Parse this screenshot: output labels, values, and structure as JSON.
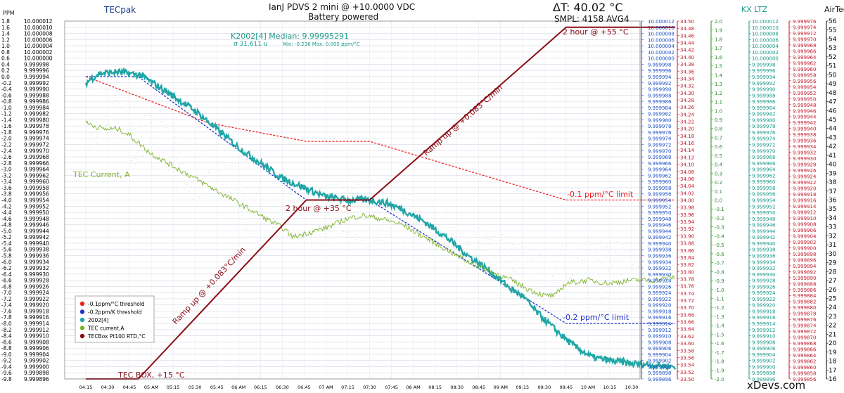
{
  "header": {
    "ppm_unit": "PPM",
    "tecpak": "TECpak",
    "title_line1": "IanJ PDVS 2 mini @ +10.0000 VDC",
    "title_line2": "Battery powered",
    "delta_t": "ΔT: 40.02 °C",
    "smpl": "SMPL: 4158 AVG4",
    "kx_ltz": "KX LTZ",
    "airtec": "AirTec",
    "median": "K2002[4] Median: 9.99995291",
    "sigma": "σ 31.611 u",
    "minmax": "Min: -0.236  Max: 0.005 ppm/°C",
    "watermark": "xDevs.com"
  },
  "chart_data": {
    "type": "line",
    "x_ticks": [
      "04:15",
      "04:30",
      "04:45",
      "05 AM",
      "05:15",
      "05:30",
      "05:45",
      "06 AM",
      "06:15",
      "06:30",
      "06:45",
      "07 AM",
      "07:15",
      "07:30",
      "07:45",
      "08 AM",
      "08:15",
      "08:30",
      "08:45",
      "09 AM",
      "09:15",
      "09:30",
      "09:45",
      "10 AM",
      "10:15",
      "10:30"
    ],
    "axes": {
      "ppm": {
        "min": -9.8,
        "max": 1.8,
        "step": 0.2,
        "color": "#000000"
      },
      "left_volts": {
        "min": 9.999896,
        "max": 10.000012,
        "step": 2e-06,
        "decimals": 6,
        "color": "#000000"
      },
      "k2002": {
        "min": 9.999896,
        "max": 10.000012,
        "step": 2e-06,
        "decimals": 6,
        "color": "#1c4fc4"
      },
      "temp": {
        "min": 33.5,
        "max": 34.5,
        "step": 0.02,
        "decimals": 2,
        "color": "#c0182a"
      },
      "tec_current": {
        "min": -2.0,
        "max": 2.0,
        "step": 0.1,
        "decimals": 1,
        "color": "#2a8a2a"
      },
      "kx_ltz": {
        "min": 9.999896,
        "max": 10.000012,
        "step": 2e-06,
        "decimals": 6,
        "color": "#1a9a8a"
      },
      "airtec_v": {
        "min": 9.999856,
        "max": 9.999976,
        "step": 2e-06,
        "decimals": 6,
        "color": "#c0182a"
      },
      "airtec_t": {
        "min": 16,
        "max": 56,
        "step": 1,
        "decimals": 0,
        "color": "#000000"
      }
    },
    "series": [
      {
        "name": "-0.1ppm/°C threshold",
        "color": "#ee2222",
        "style": "dashed",
        "points": [
          [
            0,
            0.0
          ],
          [
            5.6,
            -1.5
          ],
          [
            10.1,
            -2.1
          ],
          [
            13.0,
            -2.1
          ],
          [
            22.0,
            -4.0
          ],
          [
            27.0,
            -4.0
          ]
        ]
      },
      {
        "name": "-0.2ppm/K threshold",
        "color": "#2233cc",
        "style": "dashed",
        "points": [
          [
            0,
            0.0
          ],
          [
            2.4,
            0.0
          ],
          [
            10.1,
            -4.0
          ],
          [
            13.0,
            -4.0
          ],
          [
            22.0,
            -8.0
          ],
          [
            27.0,
            -8.0
          ]
        ]
      },
      {
        "name": "2002[4]",
        "color": "#20a6a6",
        "style": "noisy",
        "points": [
          [
            0,
            -0.2
          ],
          [
            0.6,
            0.1
          ],
          [
            1.5,
            0.15
          ],
          [
            2.5,
            0.05
          ],
          [
            3.5,
            -0.4
          ],
          [
            5.0,
            -1.1
          ],
          [
            6.0,
            -1.7
          ],
          [
            7.0,
            -2.3
          ],
          [
            8.0,
            -2.8
          ],
          [
            9.0,
            -3.3
          ],
          [
            10.0,
            -3.6
          ],
          [
            11.0,
            -3.9
          ],
          [
            12.0,
            -4.0
          ],
          [
            13.0,
            -4.0
          ],
          [
            13.8,
            -4.1
          ],
          [
            14.5,
            -4.3
          ],
          [
            15.5,
            -4.7
          ],
          [
            16.5,
            -5.2
          ],
          [
            17.5,
            -5.8
          ],
          [
            18.5,
            -6.3
          ],
          [
            19.5,
            -6.9
          ],
          [
            20.0,
            -7.1
          ],
          [
            20.6,
            -7.6
          ],
          [
            21.5,
            -8.2
          ],
          [
            22.3,
            -8.7
          ],
          [
            23.2,
            -9.1
          ],
          [
            24.0,
            -9.2
          ],
          [
            25.0,
            -9.3
          ],
          [
            26.0,
            -9.35
          ],
          [
            27.0,
            -9.4
          ]
        ]
      },
      {
        "name": "TEC current,A",
        "color": "#7db32a",
        "style": "thin",
        "points": [
          [
            0,
            -1.5
          ],
          [
            0.8,
            -1.7
          ],
          [
            1.5,
            -1.7
          ],
          [
            2.0,
            -1.9
          ],
          [
            3.0,
            -2.5
          ],
          [
            4.0,
            -2.9
          ],
          [
            5.0,
            -3.3
          ],
          [
            6.0,
            -3.7
          ],
          [
            7.0,
            -4.1
          ],
          [
            8.0,
            -4.5
          ],
          [
            9.0,
            -4.9
          ],
          [
            9.5,
            -5.2
          ],
          [
            10.0,
            -5.1
          ],
          [
            11.0,
            -4.9
          ],
          [
            12.0,
            -4.6
          ],
          [
            12.7,
            -4.5
          ],
          [
            13.5,
            -4.6
          ],
          [
            14.5,
            -4.8
          ],
          [
            15.5,
            -5.2
          ],
          [
            16.5,
            -5.6
          ],
          [
            17.5,
            -6.0
          ],
          [
            18.5,
            -6.3
          ],
          [
            19.5,
            -6.6
          ],
          [
            20.3,
            -6.9
          ],
          [
            21.0,
            -7.1
          ],
          [
            21.5,
            -7.1
          ],
          [
            22.0,
            -6.7
          ],
          [
            23.0,
            -6.6
          ],
          [
            24.0,
            -6.7
          ],
          [
            25.0,
            -6.6
          ],
          [
            26.0,
            -6.6
          ],
          [
            27.0,
            -6.5
          ]
        ]
      },
      {
        "name": "TECBox Pt100 RTD,°C",
        "color": "#8a0d16",
        "style": "solid",
        "points": [
          [
            0,
            -9.8
          ],
          [
            2.4,
            -9.8
          ],
          [
            10.1,
            -4.0
          ],
          [
            13.0,
            -4.0
          ],
          [
            22.0,
            1.6
          ],
          [
            27.0,
            1.6
          ]
        ]
      }
    ],
    "legend_position": "bottom-left",
    "annotations": {
      "ramp1": "Ramp up @ +0.083°C/min",
      "ramp2": "Ramp up @ +0.083°C/min",
      "hold35": "2 hour @ +35 °C",
      "hold55": "2 hour @ +55 °C",
      "limit1": "-0.1 ppm/°C limit",
      "limit2": "-0.2 ppm/°C limit",
      "tec_current": "TEC Current, A",
      "tecbox": "TEC BOX, +15 °C"
    }
  }
}
